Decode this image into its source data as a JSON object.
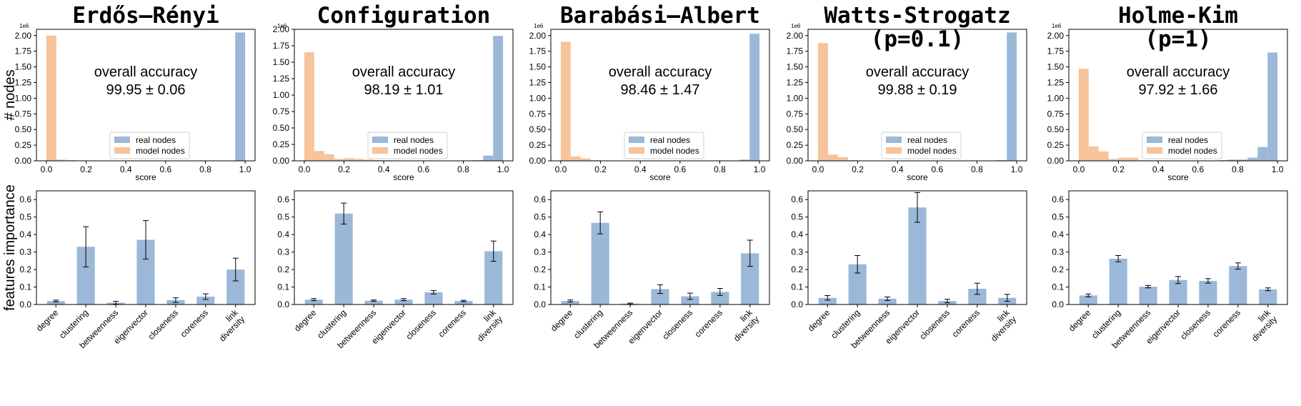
{
  "shared": {
    "score_xlabel": "score",
    "hist_ylabel": "# nodes",
    "imp_ylabel": "features importance",
    "hist_y_multiplier": "1e6",
    "accuracy_label": "overall accuracy",
    "legend_real": "real nodes",
    "legend_model": "model nodes",
    "x_ticks": [
      "0.0",
      "0.2",
      "0.4",
      "0.6",
      "0.8",
      "1.0"
    ],
    "imp_y_ticks": [
      "0.0",
      "0.1",
      "0.2",
      "0.3",
      "0.4",
      "0.5",
      "0.6"
    ],
    "feature_labels": [
      "degree",
      "clustering",
      "betweenness",
      "eigenvector",
      "closeness",
      "coreness",
      "link\ndiversity"
    ],
    "colors": {
      "real": "#9bb8d8",
      "model": "#f6c39a",
      "axis": "#000000",
      "errbar": "#000000"
    }
  },
  "chart_data": [
    {
      "panel": "erdos-renyi",
      "title": "Erdős–Rényi",
      "title_line2": "",
      "accuracy_value": "99.95 ±  0.06",
      "histogram": {
        "type": "bar",
        "xlabel": "score",
        "ylabel": "# nodes",
        "xlim": [
          -0.05,
          1.05
        ],
        "ylim": [
          0,
          2.1
        ],
        "y_ticks": [
          "0.00",
          "0.25",
          "0.50",
          "0.75",
          "1.00",
          "1.25",
          "1.50",
          "1.75",
          "2.00"
        ],
        "bin_edges": [
          0.0,
          0.05,
          0.1,
          0.15,
          0.2,
          0.25,
          0.3,
          0.35,
          0.4,
          0.45,
          0.5,
          0.55,
          0.6,
          0.65,
          0.7,
          0.75,
          0.8,
          0.85,
          0.9,
          0.95,
          1.0
        ],
        "series": [
          {
            "name": "real nodes",
            "values": [
              0,
              0,
              0,
              0,
              0,
              0,
              0,
              0,
              0,
              0,
              0,
              0,
              0,
              0,
              0,
              0,
              0,
              0,
              0,
              2.05
            ]
          },
          {
            "name": "model nodes",
            "values": [
              2.0,
              0.02,
              0.01,
              0,
              0,
              0,
              0,
              0,
              0,
              0,
              0,
              0,
              0,
              0,
              0,
              0,
              0,
              0,
              0,
              0
            ]
          }
        ]
      },
      "importance": {
        "type": "bar",
        "ylabel": "features importance",
        "ylim": [
          0,
          0.65
        ],
        "values": [
          0.02,
          0.33,
          0.01,
          0.37,
          0.025,
          0.045,
          0.2
        ],
        "errors": [
          0.005,
          0.115,
          0.008,
          0.11,
          0.013,
          0.016,
          0.065
        ]
      }
    },
    {
      "panel": "configuration",
      "title": "Configuration",
      "title_line2": "",
      "accuracy_value": "98.19 ±  1.01",
      "histogram": {
        "type": "bar",
        "xlabel": "score",
        "ylabel": "",
        "xlim": [
          -0.05,
          1.05
        ],
        "ylim": [
          0,
          2.0
        ],
        "y_ticks": [
          "0.00",
          "0.25",
          "0.50",
          "0.75",
          "1.00",
          "1.25",
          "1.50",
          "1.75",
          "2.00"
        ],
        "bin_edges": [
          0.0,
          0.05,
          0.1,
          0.15,
          0.2,
          0.25,
          0.3,
          0.35,
          0.4,
          0.45,
          0.5,
          0.55,
          0.6,
          0.65,
          0.7,
          0.75,
          0.8,
          0.85,
          0.9,
          0.95,
          1.0
        ],
        "series": [
          {
            "name": "real nodes",
            "values": [
              0,
              0,
              0,
              0,
              0,
              0,
              0,
              0,
              0,
              0,
              0,
              0,
              0,
              0,
              0,
              0,
              0.005,
              0.01,
              0.08,
              1.9
            ]
          },
          {
            "name": "model nodes",
            "values": [
              1.65,
              0.15,
              0.1,
              0.03,
              0.04,
              0.03,
              0.02,
              0.01,
              0.01,
              0.005,
              0.005,
              0,
              0,
              0,
              0,
              0,
              0,
              0,
              0,
              0
            ]
          }
        ]
      },
      "importance": {
        "type": "bar",
        "ylabel": "",
        "ylim": [
          0,
          0.65
        ],
        "values": [
          0.028,
          0.52,
          0.022,
          0.028,
          0.07,
          0.02,
          0.305
        ],
        "errors": [
          0.006,
          0.06,
          0.004,
          0.006,
          0.01,
          0.004,
          0.058
        ]
      }
    },
    {
      "panel": "barabasi-albert",
      "title": "Barabási–Albert",
      "title_line2": "",
      "accuracy_value": "98.46 ± 1.47",
      "histogram": {
        "type": "bar",
        "xlabel": "score",
        "ylabel": "",
        "xlim": [
          -0.05,
          1.05
        ],
        "ylim": [
          0,
          2.1
        ],
        "y_ticks": [
          "0.00",
          "0.25",
          "0.50",
          "0.75",
          "1.00",
          "1.25",
          "1.50",
          "1.75",
          "2.00"
        ],
        "bin_edges": [
          0.0,
          0.05,
          0.1,
          0.15,
          0.2,
          0.25,
          0.3,
          0.35,
          0.4,
          0.45,
          0.5,
          0.55,
          0.6,
          0.65,
          0.7,
          0.75,
          0.8,
          0.85,
          0.9,
          0.95,
          1.0
        ],
        "series": [
          {
            "name": "real nodes",
            "values": [
              0,
              0,
              0,
              0,
              0,
              0,
              0,
              0,
              0,
              0,
              0,
              0,
              0,
              0,
              0,
              0,
              0,
              0,
              0.02,
              2.03
            ]
          },
          {
            "name": "model nodes",
            "values": [
              1.9,
              0.07,
              0.04,
              0.01,
              0.005,
              0,
              0,
              0,
              0,
              0,
              0,
              0,
              0,
              0,
              0,
              0,
              0,
              0,
              0,
              0
            ]
          }
        ]
      },
      "importance": {
        "type": "bar",
        "ylabel": "",
        "ylim": [
          0,
          0.65
        ],
        "values": [
          0.02,
          0.467,
          0.005,
          0.088,
          0.047,
          0.072,
          0.293
        ],
        "errors": [
          0.006,
          0.063,
          0.003,
          0.025,
          0.018,
          0.02,
          0.075
        ]
      }
    },
    {
      "panel": "watts-strogatz",
      "title": "Watts-Strogatz",
      "title_line2": "(p=0.1)",
      "accuracy_value": "99.88 ± 0.19",
      "histogram": {
        "type": "bar",
        "xlabel": "score",
        "ylabel": "",
        "xlim": [
          -0.05,
          1.05
        ],
        "ylim": [
          0,
          2.1
        ],
        "y_ticks": [
          "0.00",
          "0.25",
          "0.50",
          "0.75",
          "1.00",
          "1.25",
          "1.50",
          "1.75",
          "2.00"
        ],
        "bin_edges": [
          0.0,
          0.05,
          0.1,
          0.15,
          0.2,
          0.25,
          0.3,
          0.35,
          0.4,
          0.45,
          0.5,
          0.55,
          0.6,
          0.65,
          0.7,
          0.75,
          0.8,
          0.85,
          0.9,
          0.95,
          1.0
        ],
        "series": [
          {
            "name": "real nodes",
            "values": [
              0,
              0,
              0,
              0,
              0,
              0,
              0,
              0,
              0,
              0,
              0,
              0,
              0,
              0,
              0,
              0,
              0,
              0,
              0.01,
              2.05
            ]
          },
          {
            "name": "model nodes",
            "values": [
              1.88,
              0.1,
              0.06,
              0.01,
              0.005,
              0,
              0,
              0,
              0,
              0,
              0,
              0,
              0,
              0,
              0,
              0,
              0,
              0,
              0,
              0
            ]
          }
        ]
      },
      "importance": {
        "type": "bar",
        "ylabel": "",
        "ylim": [
          0,
          0.65
        ],
        "values": [
          0.038,
          0.23,
          0.033,
          0.555,
          0.02,
          0.09,
          0.038
        ],
        "errors": [
          0.013,
          0.05,
          0.01,
          0.085,
          0.01,
          0.032,
          0.02
        ]
      }
    },
    {
      "panel": "holme-kim",
      "title": "Holme-Kim",
      "title_line2": "(p=1)",
      "accuracy_value": "97.92 ± 1.66",
      "histogram": {
        "type": "bar",
        "xlabel": "score",
        "ylabel": "",
        "xlim": [
          -0.05,
          1.05
        ],
        "ylim": [
          0,
          2.1
        ],
        "y_ticks": [
          "0.00",
          "0.25",
          "0.50",
          "0.75",
          "1.00",
          "1.25",
          "1.50",
          "1.75",
          "2.00"
        ],
        "bin_edges": [
          0.0,
          0.05,
          0.1,
          0.15,
          0.2,
          0.25,
          0.3,
          0.35,
          0.4,
          0.45,
          0.5,
          0.55,
          0.6,
          0.65,
          0.7,
          0.75,
          0.8,
          0.85,
          0.9,
          0.95,
          1.0
        ],
        "series": [
          {
            "name": "real nodes",
            "values": [
              0,
              0,
              0,
              0,
              0,
              0,
              0,
              0,
              0,
              0,
              0,
              0,
              0,
              0.005,
              0.01,
              0.02,
              0.02,
              0.05,
              0.22,
              1.73
            ]
          },
          {
            "name": "model nodes",
            "values": [
              1.47,
              0.23,
              0.15,
              0.03,
              0.05,
              0.05,
              0.01,
              0.01,
              0.005,
              0.005,
              0.005,
              0,
              0,
              0,
              0,
              0,
              0,
              0,
              0,
              0
            ]
          }
        ]
      },
      "importance": {
        "type": "bar",
        "ylabel": "",
        "ylim": [
          0,
          0.65
        ],
        "values": [
          0.052,
          0.262,
          0.102,
          0.14,
          0.135,
          0.22,
          0.087
        ],
        "errors": [
          0.008,
          0.018,
          0.007,
          0.02,
          0.013,
          0.018,
          0.008
        ]
      }
    }
  ]
}
